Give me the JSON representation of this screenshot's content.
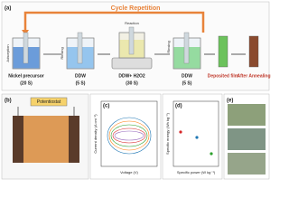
{
  "panel_a": {
    "label": "(a)",
    "cycle": "Cycle Repetition",
    "steps": [
      {
        "action": "Adsorption",
        "name": "Nickel precursor",
        "time": "(20 S)"
      },
      {
        "action": "Rinsing",
        "name": "DDW",
        "time": "(5 S)"
      },
      {
        "action": "Reaction",
        "name": "DDW+ H2O2",
        "time": "(30 S)"
      },
      {
        "action": "Rinsing",
        "name": "DDW",
        "time": "(5 S)"
      }
    ],
    "results": [
      "Deposited film",
      "After Annealing"
    ]
  },
  "panel_b": {
    "label": "(b)",
    "device": "Potentiostat"
  },
  "panel_c": {
    "label": "(c)",
    "x_label": "Voltage (V)",
    "y_label": "Current density (A cm⁻²)"
  },
  "panel_d": {
    "label": "(d)",
    "x_label": "Specific power (W kg⁻¹)",
    "y_label": "Specific energy (Wh kg⁻¹)"
  },
  "panel_e": {
    "label": "(e)"
  }
}
